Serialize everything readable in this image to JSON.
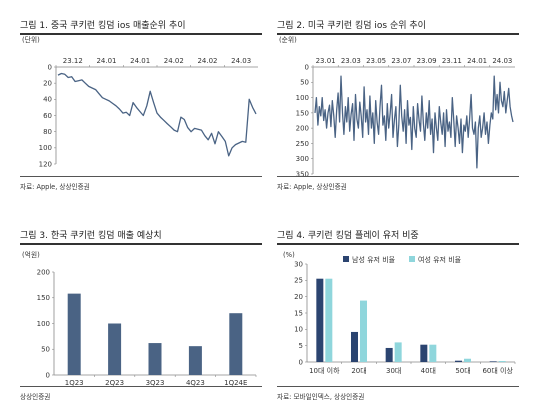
{
  "panels": [
    {
      "title": "그림 1. 중국 쿠키런 킹덤 ios 매출순위 추이",
      "source": "자료: Apple, 상상인증권"
    },
    {
      "title": "그림 2. 미국 쿠키런 킹덤 ios 순위 추이",
      "source": "자료: Apple, 상상인증권"
    },
    {
      "title": "그림 3. 한국 쿠키런 킹덤 매출 예상치",
      "source": "상상인증권"
    },
    {
      "title": "그림 4. 쿠키런 킹덤 플레이 유저 비중",
      "source": "자료: 모바일인덱스, 상상인증권"
    }
  ],
  "chart_data": [
    {
      "type": "line",
      "unit": "(단위)",
      "x_ticks": [
        "23.12",
        "24.01",
        "24.01",
        "24.02",
        "24.02",
        "24.03"
      ],
      "ylim": [
        0,
        120
      ],
      "y_ticks": [
        0,
        20,
        40,
        60,
        80,
        100,
        120
      ],
      "y_inverted": true,
      "grid": false,
      "color": "#4a6384",
      "values": [
        10,
        8,
        9,
        13,
        12,
        18,
        17,
        16,
        20,
        24,
        26,
        28,
        33,
        38,
        40,
        42,
        45,
        48,
        52,
        57,
        56,
        60,
        44,
        50,
        55,
        60,
        48,
        30,
        44,
        57,
        62,
        66,
        70,
        74,
        78,
        80,
        62,
        65,
        75,
        80,
        76,
        77,
        78,
        85,
        90,
        82,
        95,
        80,
        86,
        92,
        110,
        100,
        96,
        94,
        92,
        93,
        40,
        50,
        58
      ]
    },
    {
      "type": "line",
      "unit": "(순위)",
      "x_ticks": [
        "23.01",
        "23.03",
        "23.05",
        "23.07",
        "23.09",
        "23.11",
        "24.01",
        "24.03"
      ],
      "ylim": [
        0,
        350
      ],
      "y_ticks": [
        0,
        50,
        100,
        150,
        200,
        250,
        300,
        350
      ],
      "y_inverted": true,
      "grid": false,
      "color": "#4a6384",
      "values": [
        150,
        100,
        190,
        130,
        160,
        100,
        175,
        140,
        200,
        150,
        125,
        195,
        110,
        160,
        230,
        140,
        85,
        180,
        30,
        150,
        220,
        130,
        180,
        100,
        210,
        155,
        120,
        240,
        90,
        170,
        200,
        115,
        160,
        230,
        65,
        180,
        140,
        220,
        95,
        200,
        150,
        250,
        110,
        180,
        220,
        130,
        60,
        190,
        160,
        240,
        120,
        200,
        150,
        90,
        230,
        170,
        130,
        260,
        190,
        60,
        160,
        210,
        140,
        250,
        110,
        190,
        165,
        270,
        130,
        200,
        230,
        120,
        175,
        210,
        95,
        185,
        240,
        150,
        200,
        110,
        220,
        170,
        280,
        150,
        200,
        240,
        130,
        180,
        220,
        150,
        260,
        140,
        210,
        180,
        230,
        100,
        170,
        260,
        160,
        200,
        250,
        170,
        280,
        190,
        210,
        160,
        230,
        170,
        90,
        200,
        220,
        180,
        330,
        200,
        160,
        230,
        200,
        150,
        220,
        180,
        250,
        190,
        150,
        170,
        30,
        140,
        90,
        150,
        50,
        110,
        130,
        80,
        150,
        110,
        70,
        130,
        160,
        180
      ]
    },
    {
      "type": "bar",
      "unit": "(억원)",
      "categories": [
        "1Q23",
        "2Q23",
        "3Q23",
        "4Q23",
        "1Q24E"
      ],
      "values": [
        158,
        100,
        62,
        56,
        120
      ],
      "ylim": [
        0,
        200
      ],
      "y_ticks": [
        0,
        50,
        100,
        150,
        200
      ],
      "grid": false,
      "color": "#4a6384"
    },
    {
      "type": "bar",
      "unit": "(%)",
      "categories": [
        "10대 이하",
        "20대",
        "30대",
        "40대",
        "50대",
        "60대 이상"
      ],
      "series": [
        {
          "name": "남성 유저 비율",
          "values": [
            25.5,
            9.2,
            4.3,
            5.3,
            0.4,
            0.2
          ],
          "color": "#2b4470"
        },
        {
          "name": "여성 유저 비율",
          "values": [
            25.5,
            18.8,
            6.0,
            5.3,
            1.0,
            0.3
          ],
          "color": "#8fd6dc"
        }
      ],
      "ylim": [
        0,
        30
      ],
      "y_ticks": [
        0,
        5,
        10,
        15,
        20,
        25,
        30
      ],
      "grid": false,
      "legend": "top-center"
    }
  ]
}
